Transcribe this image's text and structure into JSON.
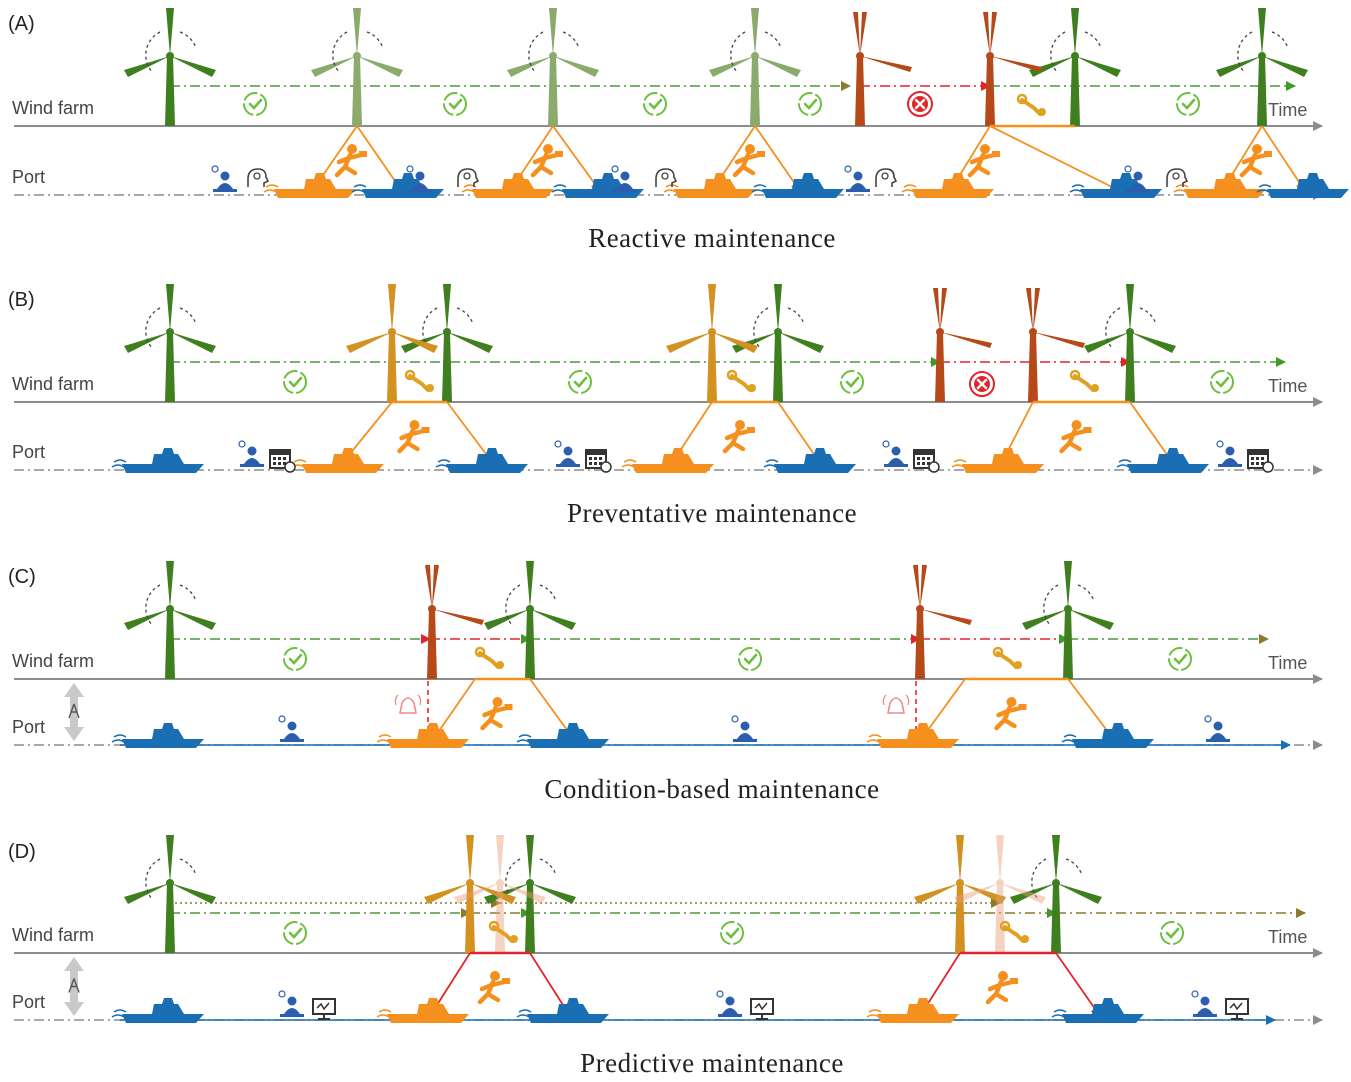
{
  "common": {
    "wind_farm_label": "Wind farm",
    "port_label": "Port",
    "time_label": "Time"
  },
  "colors": {
    "green_turbine": "#3f7f1f",
    "faded_turbine": "#8aab6c",
    "red_turbine": "#b5491a",
    "amber_turbine": "#d39122",
    "orange_route": "#f5901e",
    "red_route": "#e5242a",
    "vessel_blue": "#1a6fb4",
    "vessel_orange": "#f5901e",
    "axis_gray": "#8c8c8c",
    "check_green": "#6cbf3f",
    "fail_red": "#e0262b"
  },
  "panels": [
    {
      "id": "A",
      "label": "(A)",
      "caption": "Reactive maintenance"
    },
    {
      "id": "B",
      "label": "(B)",
      "caption": "Preventative maintenance"
    },
    {
      "id": "C",
      "label": "(C)",
      "caption": "Condition-based maintenance"
    },
    {
      "id": "D",
      "label": "(D)",
      "caption": "Predictive maintenance"
    }
  ]
}
